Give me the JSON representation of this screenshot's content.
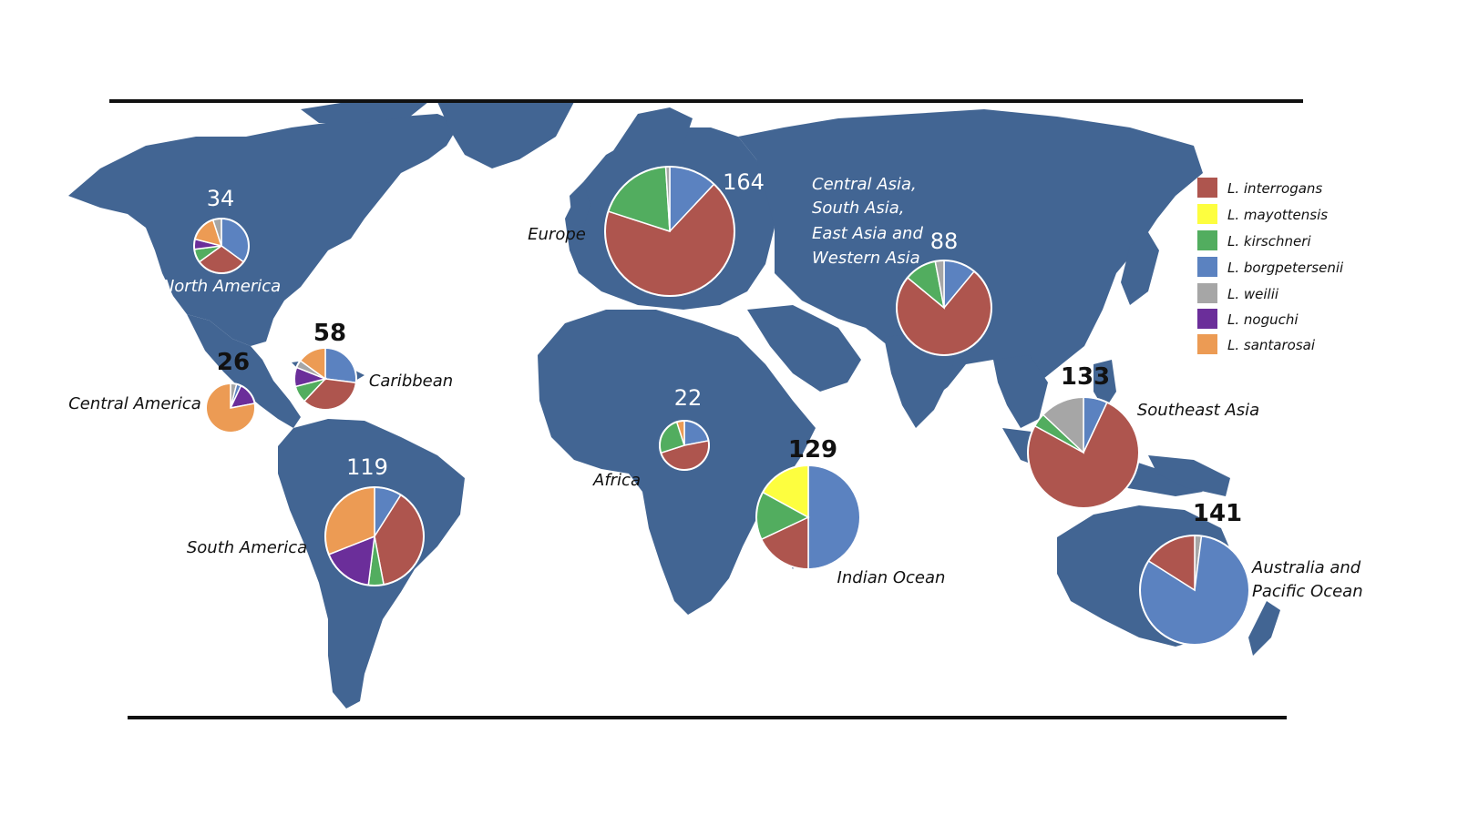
{
  "colors": {
    "land": "#426593",
    "background": "#ffffff",
    "border_line": "#111111",
    "slice_stroke": "#ffffff"
  },
  "legend": [
    {
      "key": "interrogans",
      "label": "L. interrogans",
      "color": "#AE554E"
    },
    {
      "key": "mayottensis",
      "label": "L. mayottensis",
      "color": "#FDFE3F"
    },
    {
      "key": "kirschneri",
      "label": "L. kirschneri",
      "color": "#52AD5F"
    },
    {
      "key": "borgpetersenii",
      "label": "L. borgpetersenii",
      "color": "#5B82C0"
    },
    {
      "key": "weilii",
      "label": "L. weilii",
      "color": "#A6A6A6"
    },
    {
      "key": "noguchi",
      "label": "L. noguchi",
      "color": "#6B2E9A"
    },
    {
      "key": "santarosai",
      "label": "L. santarosai",
      "color": "#EC9B54"
    }
  ],
  "chart_data": {
    "type": "pie",
    "regions": [
      {
        "id": "north-america",
        "name": "North America",
        "count": "34",
        "slices": {
          "borgpetersenii": 0.35,
          "interrogans": 0.3,
          "kirschneri": 0.08,
          "noguchi": 0.06,
          "santarosai": 0.16,
          "weilii": 0.05
        }
      },
      {
        "id": "caribbean",
        "name": "Caribbean",
        "count": "58",
        "slices": {
          "borgpetersenii": 0.27,
          "interrogans": 0.35,
          "kirschneri": 0.09,
          "noguchi": 0.1,
          "weilii": 0.04,
          "santarosai": 0.15
        }
      },
      {
        "id": "central-america",
        "name": "Central America",
        "count": "26",
        "slices": {
          "santarosai": 0.78,
          "weilii": 0.04,
          "borgpetersenii": 0.03,
          "noguchi": 0.15
        }
      },
      {
        "id": "south-america",
        "name": "South America",
        "count": "119",
        "slices": {
          "borgpetersenii": 0.09,
          "interrogans": 0.38,
          "kirschneri": 0.05,
          "noguchi": 0.17,
          "santarosai": 0.31
        }
      },
      {
        "id": "europe",
        "name": "Europe",
        "count": "164",
        "slices": {
          "borgpetersenii": 0.12,
          "interrogans": 0.68,
          "kirschneri": 0.19,
          "weilii": 0.01
        }
      },
      {
        "id": "africa",
        "name": "Africa",
        "count": "22",
        "slices": {
          "borgpetersenii": 0.22,
          "interrogans": 0.48,
          "kirschneri": 0.25,
          "santarosai": 0.05
        }
      },
      {
        "id": "indian-ocean",
        "name": "Indian Ocean",
        "count": "129",
        "slices": {
          "borgpetersenii": 0.5,
          "interrogans": 0.18,
          "kirschneri": 0.15,
          "mayottensis": 0.17
        }
      },
      {
        "id": "asia",
        "name": "Central Asia, South Asia, East Asia and Western Asia",
        "count": "88",
        "slices": {
          "borgpetersenii": 0.11,
          "interrogans": 0.75,
          "kirschneri": 0.11,
          "weilii": 0.03
        }
      },
      {
        "id": "southeast-asia",
        "name": "Southeast Asia",
        "count": "133",
        "slices": {
          "borgpetersenii": 0.07,
          "interrogans": 0.76,
          "kirschneri": 0.04,
          "weilii": 0.13
        }
      },
      {
        "id": "australia",
        "name": "Australia and Pacific Ocean",
        "count": "141",
        "slices": {
          "weilii": 0.02,
          "borgpetersenii": 0.82,
          "interrogans": 0.16
        }
      }
    ]
  },
  "labels": {
    "north_america": "North America",
    "caribbean": "Caribbean",
    "central_america": "Central America",
    "south_america": "South America",
    "europe": "Europe",
    "africa": "Africa",
    "indian_ocean": "Indian Ocean",
    "asia_line1": "Central Asia,",
    "asia_line2": "South Asia,",
    "asia_line3": "East Asia and",
    "asia_line4": "Western Asia",
    "southeast_asia": "Southeast Asia",
    "australia_line1": "Australia and",
    "australia_line2": "Pacific Ocean"
  }
}
